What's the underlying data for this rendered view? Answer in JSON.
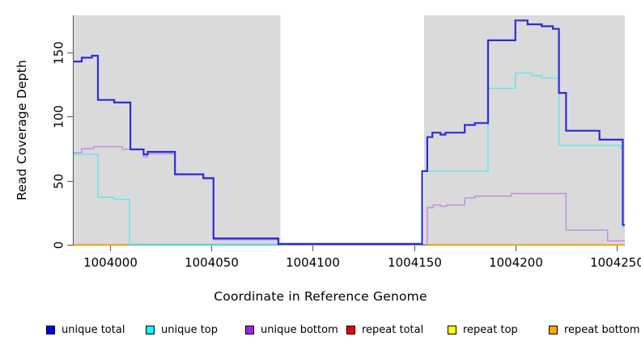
{
  "chart_data": {
    "type": "line",
    "subtype": "step",
    "title": "",
    "xlabel": "Coordinate in Reference Genome",
    "ylabel": "Read Coverage Depth",
    "xlim": [
      1003982,
      1004254
    ],
    "ylim": [
      0,
      179
    ],
    "x_ticks": [
      1004000,
      1004050,
      1004100,
      1004150,
      1004200,
      1004250
    ],
    "y_ticks": [
      0,
      50,
      100,
      150
    ],
    "grid": false,
    "legend_position": "bottom",
    "background_bands": [
      {
        "name": "repeat-region-left",
        "from": 1003982,
        "to": 1004084,
        "color": "#dadada"
      },
      {
        "name": "repeat-region-right",
        "from": 1004155,
        "to": 1004254,
        "color": "#dadada"
      }
    ],
    "white_gap": [
      1004084,
      1004155
    ],
    "series": [
      {
        "name": "unlabeled-green",
        "color": "#74c47c",
        "line_width": 1.4,
        "x_end": 1004084,
        "points": [
          [
            1004009.6,
            0.3
          ]
        ]
      },
      {
        "name": "repeat-bottom-left",
        "legend_label": "repeat bottom",
        "color": "#ffa500",
        "line_width": 1.8,
        "x_end": 1004009.6,
        "points": [
          [
            1003982,
            0
          ]
        ]
      },
      {
        "name": "repeat-bottom-right",
        "legend_label": "repeat bottom",
        "color": "#ffa500",
        "line_width": 1.8,
        "x_end": 1004254,
        "points": [
          [
            1004156,
            0
          ]
        ]
      },
      {
        "name": "unique-top",
        "legend_label": "unique top",
        "color": "#5ce6f2",
        "line_width": 1.4,
        "x_end": 1004254,
        "points": [
          [
            1003982,
            70.5
          ],
          [
            1003994,
            37
          ],
          [
            1004002,
            35.5
          ],
          [
            1004009.6,
            0
          ],
          [
            1004154,
            57.5
          ],
          [
            1004186.5,
            122
          ],
          [
            1004200,
            134
          ],
          [
            1004208,
            132
          ],
          [
            1004213,
            130
          ],
          [
            1004221.5,
            77.5
          ],
          [
            1004252,
            75.5
          ],
          [
            1004253,
            13.5
          ]
        ]
      },
      {
        "name": "unique-bottom",
        "legend_label": "unique bottom",
        "color": "#bd8be3",
        "line_width": 1.4,
        "x_end": 1004254,
        "points": [
          [
            1003982,
            72
          ],
          [
            1003986,
            75
          ],
          [
            1003992,
            76.5
          ],
          [
            1004006,
            74.5
          ],
          [
            1004010,
            74
          ],
          [
            1004016.5,
            68.5
          ],
          [
            1004018.5,
            71
          ],
          [
            1004032,
            54.5
          ],
          [
            1004046,
            51.5
          ],
          [
            1004051,
            4
          ],
          [
            1004083,
            0.2
          ],
          [
            1004156.5,
            29
          ],
          [
            1004159.5,
            31
          ],
          [
            1004163,
            30
          ],
          [
            1004166,
            31
          ],
          [
            1004175,
            36.5
          ],
          [
            1004180,
            38
          ],
          [
            1004198,
            40
          ],
          [
            1004225,
            11.5
          ],
          [
            1004245.5,
            3
          ]
        ]
      },
      {
        "name": "unique-total",
        "legend_label": "unique total",
        "color": "#2b2be0",
        "line_width": 2.2,
        "x_end": 1004254,
        "points": [
          [
            1003982,
            143
          ],
          [
            1003986,
            146
          ],
          [
            1003991,
            147.5
          ],
          [
            1003994,
            113
          ],
          [
            1004002,
            111
          ],
          [
            1004010,
            74.5
          ],
          [
            1004016.5,
            70.5
          ],
          [
            1004018.5,
            72.5
          ],
          [
            1004032,
            55
          ],
          [
            1004046,
            52
          ],
          [
            1004051,
            5
          ],
          [
            1004083,
            0.7
          ],
          [
            1004154,
            57.5
          ],
          [
            1004156.5,
            84
          ],
          [
            1004159,
            87.5
          ],
          [
            1004163,
            86
          ],
          [
            1004165.5,
            87.5
          ],
          [
            1004175,
            93.5
          ],
          [
            1004180,
            95
          ],
          [
            1004186.5,
            159.5
          ],
          [
            1004200,
            175
          ],
          [
            1004206,
            172
          ],
          [
            1004213,
            170.5
          ],
          [
            1004218.5,
            168.5
          ],
          [
            1004221.5,
            118.5
          ],
          [
            1004225,
            89
          ],
          [
            1004241.5,
            82
          ],
          [
            1004253,
            15.5
          ]
        ]
      }
    ]
  },
  "legend": {
    "items": [
      {
        "label": "unique total",
        "color": "#0000ee"
      },
      {
        "label": "unique top",
        "color": "#00ffff"
      },
      {
        "label": "unique bottom",
        "color": "#a020f0"
      },
      {
        "label": "repeat total",
        "color": "#ee0000"
      },
      {
        "label": "repeat top",
        "color": "#ffff00"
      },
      {
        "label": "repeat bottom",
        "color": "#ffa500"
      }
    ]
  },
  "axis": {
    "x_tick_labels": [
      "1004000",
      "1004050",
      "1004100",
      "1004150",
      "1004200",
      "1004250"
    ],
    "y_tick_labels": [
      "0",
      "50",
      "100",
      "150"
    ]
  }
}
